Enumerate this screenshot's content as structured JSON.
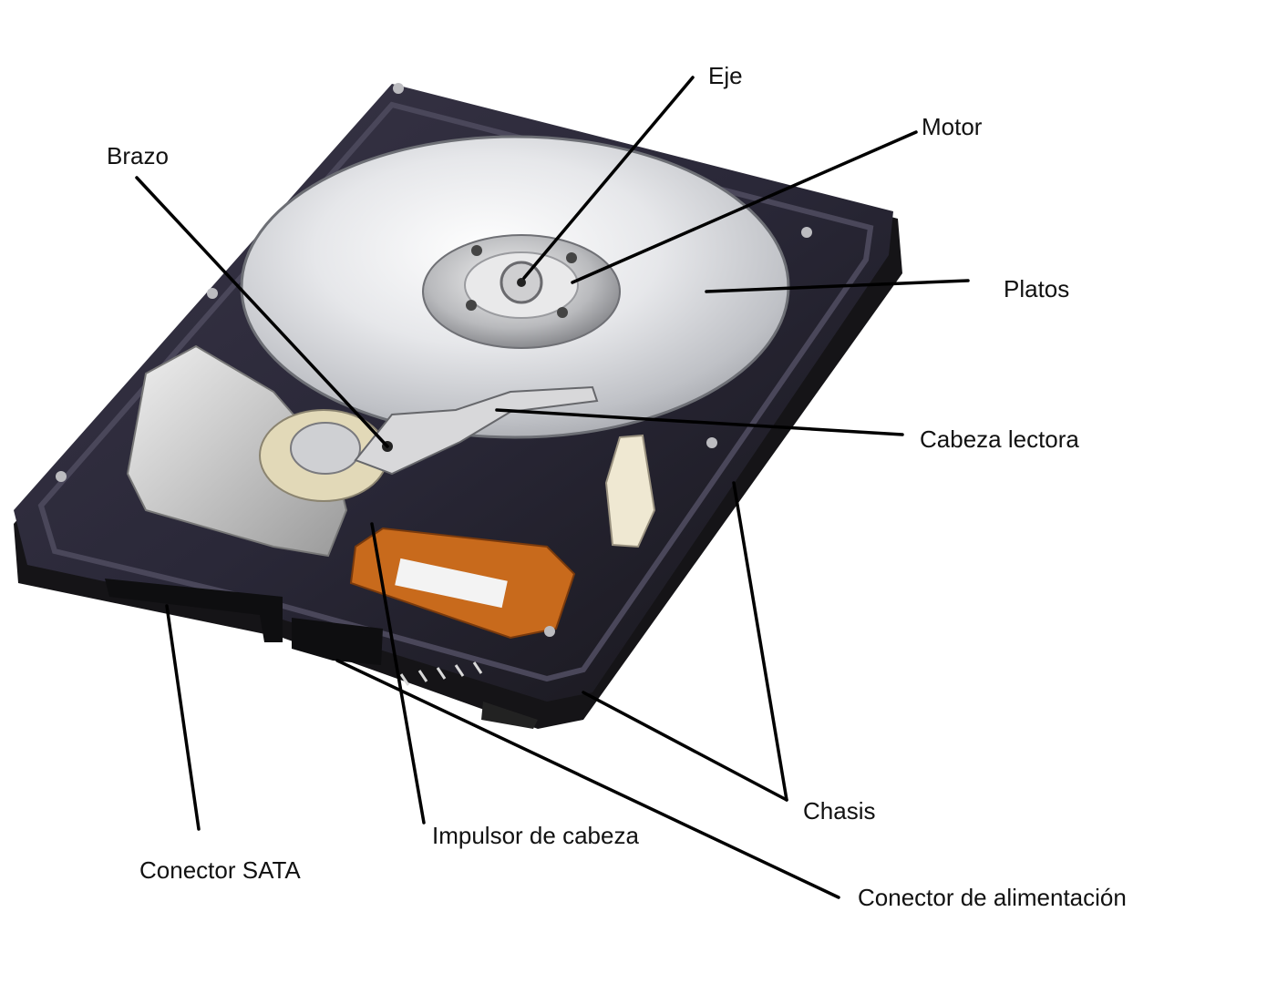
{
  "labels": {
    "eje": "Eje",
    "motor": "Motor",
    "brazo": "Brazo",
    "platos": "Platos",
    "cabeza_lectora": "Cabeza lectora",
    "chasis": "Chasis",
    "impulsor": "Impulsor de cabeza",
    "conector_sata": "Conector SATA",
    "conector_alimentacion": "Conector de alimentación"
  },
  "colors": {
    "leader_line": "#000000",
    "chassis": "#1b1b1f",
    "cover_interior": "#2a2838",
    "platter": "#d9dadd",
    "flex_cable": "#c86a1c"
  }
}
